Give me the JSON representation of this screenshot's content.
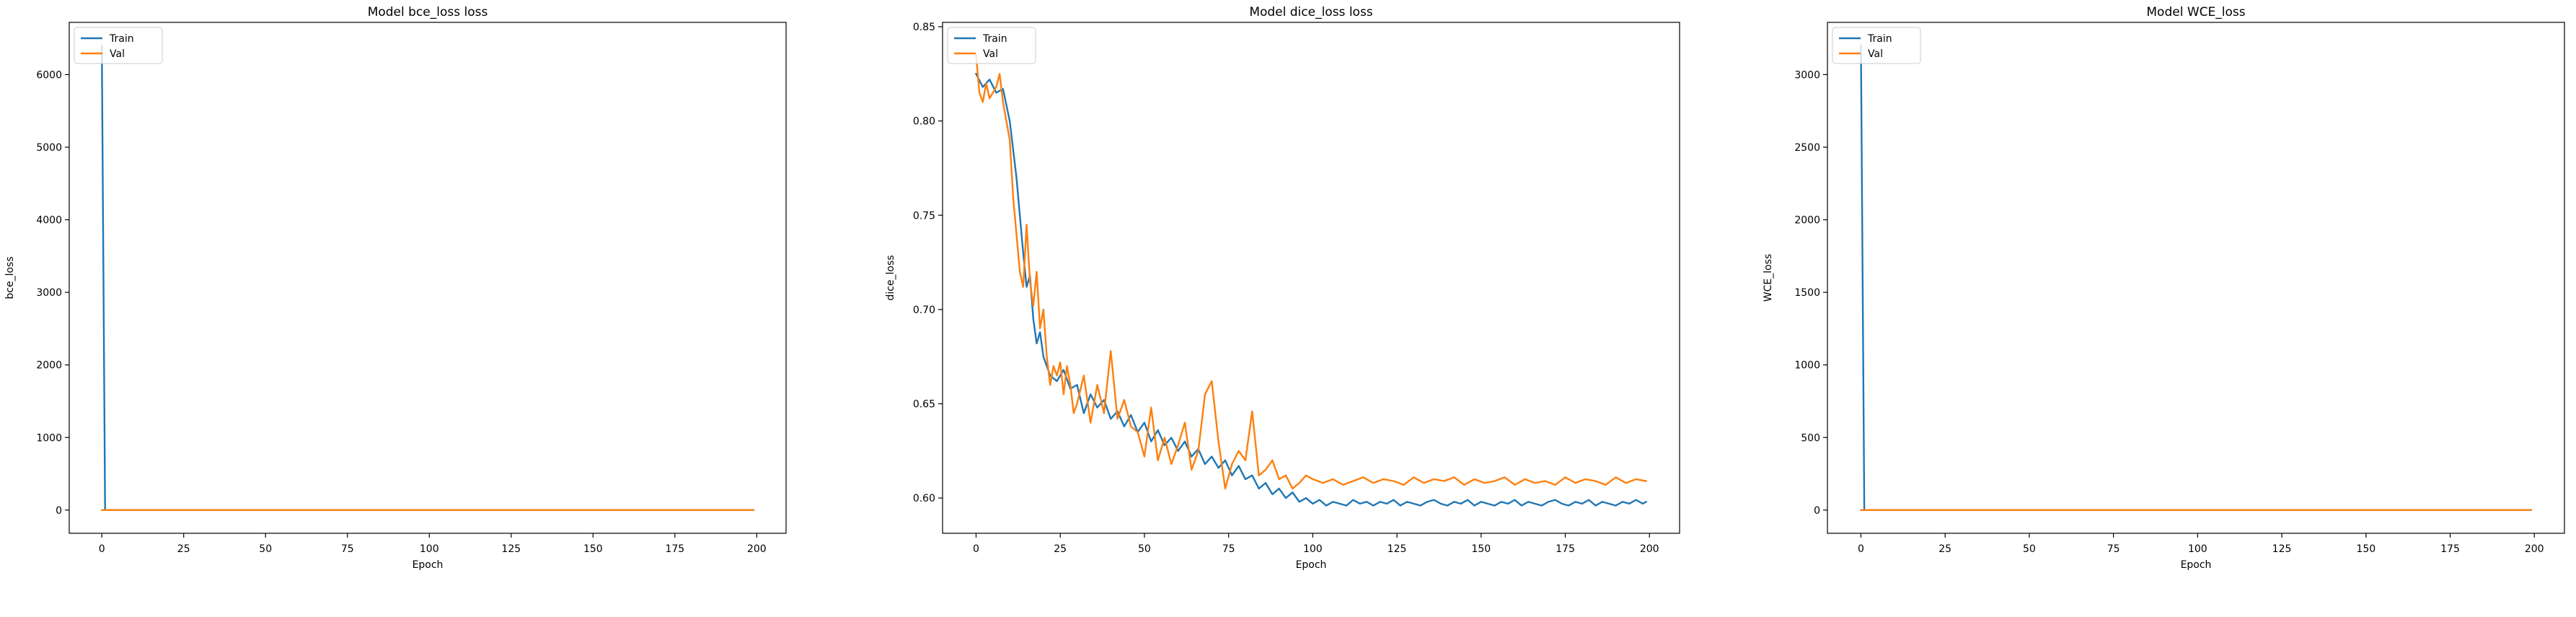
{
  "figure": {
    "background": "#ffffff"
  },
  "colors": {
    "train": "#1f77b4",
    "val": "#ff7f0e"
  },
  "chart_data": [
    {
      "type": "line",
      "title": "Model bce_loss loss",
      "xlabel": "Epoch",
      "ylabel": "bce_loss",
      "xlim": [
        -9.95,
        208.95
      ],
      "ylim": [
        -320,
        6720
      ],
      "xticks": [
        0,
        25,
        50,
        75,
        100,
        125,
        150,
        175,
        200
      ],
      "yticks": [
        0,
        1000,
        2000,
        3000,
        4000,
        5000,
        6000
      ],
      "yticklabels": [
        "0",
        "1000",
        "2000",
        "3000",
        "4000",
        "5000",
        "6000"
      ],
      "legend_loc": "upper left",
      "series": [
        {
          "name": "Train",
          "color": "#1f77b4",
          "x": [
            0,
            1,
            199
          ],
          "y": [
            6400,
            0.2,
            0.2
          ]
        },
        {
          "name": "Val",
          "color": "#ff7f0e",
          "x": [
            0,
            199
          ],
          "y": [
            0.2,
            0.2
          ]
        }
      ]
    },
    {
      "type": "line",
      "title": "Model dice_loss loss",
      "xlabel": "Epoch",
      "ylabel": "dice_loss",
      "xlim": [
        -9.95,
        208.95
      ],
      "ylim": [
        0.5813,
        0.8523
      ],
      "xticks": [
        0,
        25,
        50,
        75,
        100,
        125,
        150,
        175,
        200
      ],
      "yticks": [
        0.6,
        0.65,
        0.7,
        0.75,
        0.8,
        0.85
      ],
      "yticklabels": [
        "0.60",
        "0.65",
        "0.70",
        "0.75",
        "0.80",
        "0.85"
      ],
      "legend_loc": "upper left",
      "series": [
        {
          "name": "Train",
          "color": "#1f77b4",
          "x": [
            0,
            2,
            4,
            6,
            8,
            10,
            12,
            14,
            15,
            16,
            17,
            18,
            19,
            20,
            22,
            24,
            26,
            28,
            30,
            32,
            34,
            36,
            38,
            40,
            42,
            44,
            46,
            48,
            50,
            52,
            54,
            56,
            58,
            60,
            62,
            64,
            66,
            68,
            70,
            72,
            74,
            76,
            78,
            80,
            82,
            84,
            86,
            88,
            90,
            92,
            94,
            96,
            98,
            100,
            102,
            104,
            106,
            108,
            110,
            112,
            114,
            116,
            118,
            120,
            122,
            124,
            126,
            128,
            130,
            132,
            134,
            136,
            138,
            140,
            142,
            144,
            146,
            148,
            150,
            152,
            154,
            156,
            158,
            160,
            162,
            164,
            166,
            168,
            170,
            172,
            174,
            176,
            178,
            180,
            182,
            184,
            186,
            188,
            190,
            192,
            194,
            196,
            198,
            199
          ],
          "y": [
            0.825,
            0.818,
            0.822,
            0.815,
            0.817,
            0.8,
            0.77,
            0.73,
            0.712,
            0.718,
            0.695,
            0.682,
            0.688,
            0.675,
            0.665,
            0.662,
            0.668,
            0.658,
            0.66,
            0.645,
            0.655,
            0.648,
            0.652,
            0.642,
            0.646,
            0.638,
            0.644,
            0.635,
            0.64,
            0.63,
            0.636,
            0.628,
            0.632,
            0.625,
            0.63,
            0.622,
            0.626,
            0.618,
            0.622,
            0.616,
            0.62,
            0.612,
            0.617,
            0.61,
            0.612,
            0.605,
            0.608,
            0.602,
            0.605,
            0.6,
            0.603,
            0.598,
            0.6,
            0.597,
            0.599,
            0.596,
            0.598,
            0.597,
            0.596,
            0.599,
            0.597,
            0.598,
            0.596,
            0.598,
            0.597,
            0.599,
            0.596,
            0.598,
            0.597,
            0.596,
            0.598,
            0.599,
            0.597,
            0.596,
            0.598,
            0.597,
            0.599,
            0.596,
            0.598,
            0.597,
            0.596,
            0.598,
            0.597,
            0.599,
            0.596,
            0.598,
            0.597,
            0.596,
            0.598,
            0.599,
            0.597,
            0.596,
            0.598,
            0.597,
            0.599,
            0.596,
            0.598,
            0.597,
            0.596,
            0.598,
            0.597,
            0.599,
            0.597,
            0.598
          ]
        },
        {
          "name": "Val",
          "color": "#ff7f0e",
          "x": [
            0,
            1,
            2,
            3,
            4,
            5,
            6,
            7,
            8,
            9,
            10,
            11,
            12,
            13,
            14,
            15,
            16,
            17,
            18,
            19,
            20,
            21,
            22,
            23,
            24,
            25,
            26,
            27,
            28,
            29,
            30,
            32,
            34,
            36,
            38,
            40,
            42,
            44,
            46,
            48,
            50,
            52,
            54,
            56,
            58,
            60,
            62,
            64,
            66,
            68,
            70,
            72,
            74,
            76,
            78,
            80,
            82,
            84,
            86,
            88,
            90,
            92,
            94,
            96,
            98,
            100,
            103,
            106,
            109,
            112,
            115,
            118,
            121,
            124,
            127,
            130,
            133,
            136,
            139,
            142,
            145,
            148,
            151,
            154,
            157,
            160,
            163,
            166,
            169,
            172,
            175,
            178,
            181,
            184,
            187,
            190,
            193,
            196,
            199
          ],
          "y": [
            0.835,
            0.815,
            0.81,
            0.82,
            0.812,
            0.815,
            0.818,
            0.825,
            0.81,
            0.8,
            0.79,
            0.76,
            0.74,
            0.72,
            0.712,
            0.745,
            0.715,
            0.702,
            0.72,
            0.69,
            0.7,
            0.675,
            0.66,
            0.67,
            0.665,
            0.672,
            0.655,
            0.67,
            0.66,
            0.645,
            0.65,
            0.665,
            0.64,
            0.66,
            0.645,
            0.678,
            0.642,
            0.652,
            0.638,
            0.635,
            0.622,
            0.648,
            0.62,
            0.632,
            0.618,
            0.628,
            0.64,
            0.615,
            0.625,
            0.655,
            0.662,
            0.63,
            0.605,
            0.618,
            0.625,
            0.62,
            0.646,
            0.612,
            0.615,
            0.62,
            0.61,
            0.612,
            0.605,
            0.608,
            0.612,
            0.61,
            0.608,
            0.61,
            0.607,
            0.609,
            0.611,
            0.608,
            0.61,
            0.609,
            0.607,
            0.611,
            0.608,
            0.61,
            0.609,
            0.611,
            0.607,
            0.61,
            0.608,
            0.609,
            0.611,
            0.607,
            0.61,
            0.608,
            0.609,
            0.607,
            0.611,
            0.608,
            0.61,
            0.609,
            0.607,
            0.611,
            0.608,
            0.61,
            0.609
          ]
        }
      ]
    },
    {
      "type": "line",
      "title": "Model WCE_loss",
      "xlabel": "Epoch",
      "ylabel": "WCE_loss",
      "xlim": [
        -9.95,
        208.95
      ],
      "ylim": [
        -160,
        3360
      ],
      "xticks": [
        0,
        25,
        50,
        75,
        100,
        125,
        150,
        175,
        200
      ],
      "yticks": [
        0,
        500,
        1000,
        1500,
        2000,
        2500,
        3000
      ],
      "yticklabels": [
        "0",
        "500",
        "1000",
        "1500",
        "2000",
        "2500",
        "3000"
      ],
      "legend_loc": "upper left",
      "series": [
        {
          "name": "Train",
          "color": "#1f77b4",
          "x": [
            0,
            1,
            199
          ],
          "y": [
            3200,
            0.2,
            0.2
          ]
        },
        {
          "name": "Val",
          "color": "#ff7f0e",
          "x": [
            0,
            199
          ],
          "y": [
            0.2,
            0.2
          ]
        }
      ]
    }
  ]
}
